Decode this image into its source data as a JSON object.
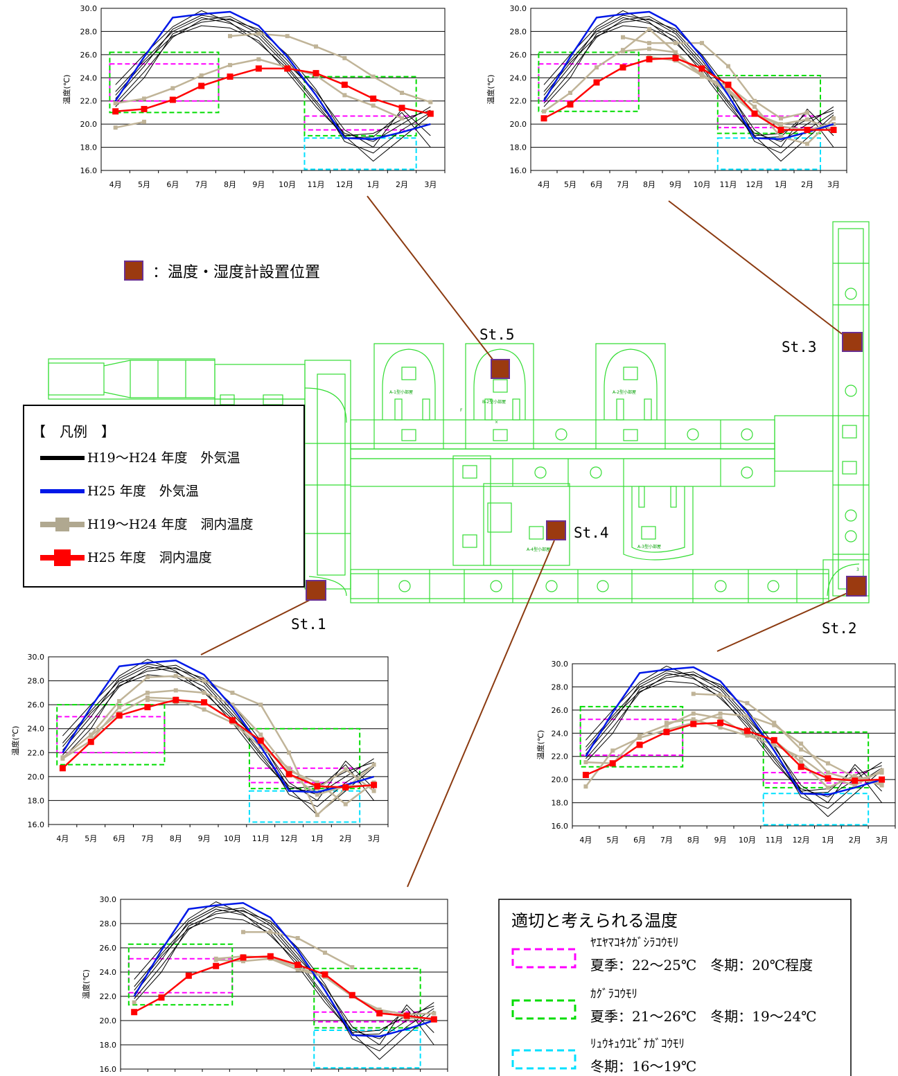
{
  "months": [
    "4月",
    "5月",
    "6月",
    "7月",
    "8月",
    "9月",
    "10月",
    "11月",
    "12月",
    "1月",
    "2月",
    "3月"
  ],
  "ylabel": "温度(℃)",
  "yticks": [
    "16.0",
    "18.0",
    "20.0",
    "22.0",
    "24.0",
    "26.0",
    "28.0",
    "30.0"
  ],
  "marker_note": "：温度・湿度計設置位置",
  "stations": {
    "st1": "St.1",
    "st2": "St.2",
    "st3": "St.3",
    "st4": "St.4",
    "st5": "St.5"
  },
  "plan_labels": {
    "a1": "A-1型小部屋",
    "b2": "B-2型小部屋",
    "a2": "A-2型小部屋",
    "a4": "A-4型小部屋",
    "a3": "A-3型小部屋",
    "f": "F",
    "x": "×",
    "three": "3"
  },
  "legend": {
    "title": "【　凡例　】",
    "items": [
      {
        "label": "H19～H24 年度　外気温",
        "color": "#000000"
      },
      {
        "label": "H25 年度　外気温",
        "color": "#0018e8"
      },
      {
        "label": "H19～H24 年度　洞内温度",
        "color": "#b0a890"
      },
      {
        "label": "H25 年度　洞内温度",
        "color": "#ff0000"
      }
    ]
  },
  "ranges_box": {
    "title": "適切と考えられる温度",
    "items": [
      {
        "name": "ﾔｴﾔﾏｺｷｸｶﾞｼﾗｺｳﾓﾘ",
        "detail": "夏季：22～25℃　冬期：20℃程度",
        "color": "#ff00ff"
      },
      {
        "name": "ｶｸﾞﾗｺｳﾓﾘ",
        "detail": "夏季：21～26℃　冬期：19～24℃",
        "color": "#00dd00"
      },
      {
        "name": "ﾘｭｳｷｭｳﾕﾋﾞﾅｶﾞｺｳﾓﾘ",
        "detail": "冬期：16～19℃",
        "color": "#00e0ff"
      }
    ]
  },
  "colors": {
    "plan": "#33dd33",
    "marker": "#9b3a10",
    "marker_border": "#6a3090",
    "leader": "#8b3a10",
    "grid": "#000000",
    "outside_past": "#000000",
    "outside_h25": "#0018e8",
    "inside_past": "#c0b498",
    "inside_h25": "#ff0000"
  },
  "chart_data": {
    "type": "line",
    "ylim": [
      16,
      30
    ],
    "categories": [
      "4月",
      "5月",
      "6月",
      "7月",
      "8月",
      "9月",
      "10月",
      "11月",
      "12月",
      "1月",
      "2月",
      "3月"
    ],
    "outside_past": [
      [
        21.8,
        24.5,
        27.5,
        29.0,
        29.3,
        28.0,
        25.5,
        22.5,
        18.5,
        17.5,
        19.5,
        21.0
      ],
      [
        22.8,
        25.5,
        28.0,
        29.2,
        28.7,
        27.5,
        25.0,
        22.0,
        19.2,
        18.5,
        20.0,
        21.5
      ],
      [
        22.2,
        25.0,
        28.2,
        29.4,
        29.0,
        28.2,
        26.0,
        23.0,
        19.0,
        16.8,
        18.8,
        20.8
      ],
      [
        23.4,
        26.0,
        28.4,
        29.8,
        28.8,
        27.0,
        24.8,
        21.8,
        18.8,
        18.9,
        21.0,
        18.0
      ],
      [
        21.5,
        24.0,
        27.8,
        28.8,
        29.1,
        27.8,
        25.2,
        22.8,
        19.5,
        18.0,
        21.3,
        19.0
      ],
      [
        22.5,
        25.3,
        27.6,
        28.5,
        28.3,
        27.2,
        24.5,
        21.5,
        19.0,
        19.2,
        20.4,
        21.2
      ]
    ],
    "outside_h25": [
      22.0,
      25.8,
      29.2,
      29.5,
      29.7,
      28.5,
      25.8,
      22.5,
      18.8,
      18.7,
      19.3,
      20.0
    ],
    "stations": [
      {
        "name": "St.5",
        "inside_past": [
          [
            null,
            null,
            null,
            null,
            27.6,
            27.8,
            27.6,
            26.7,
            25.7,
            24.1,
            22.7,
            21.9
          ],
          [
            19.7,
            20.2,
            null,
            null,
            null,
            null,
            null,
            null,
            null,
            null,
            null,
            null
          ],
          [
            21.8,
            22.2,
            23.1,
            24.2,
            25.1,
            25.6,
            24.9,
            24.2,
            22.5,
            21.6,
            20.5,
            null
          ]
        ],
        "inside_h25": [
          21.1,
          21.3,
          22.1,
          23.3,
          24.1,
          24.8,
          24.8,
          24.4,
          23.4,
          22.2,
          21.4,
          20.9
        ],
        "ranges": [
          {
            "kind": "magenta",
            "x0": 0.8,
            "x1": 4.6,
            "y0": 22.0,
            "y1": 25.2
          },
          {
            "kind": "green",
            "x0": 0.8,
            "x1": 4.6,
            "y0": 21.0,
            "y1": 26.2
          },
          {
            "kind": "magenta",
            "x0": 7.6,
            "x1": 11.5,
            "y0": 19.5,
            "y1": 20.7
          },
          {
            "kind": "green",
            "x0": 7.6,
            "x1": 11.5,
            "y0": 19.0,
            "y1": 24.1
          },
          {
            "kind": "cyan",
            "x0": 7.6,
            "x1": 11.5,
            "y0": 16.1,
            "y1": 18.8
          }
        ]
      },
      {
        "name": "St.3",
        "inside_past": [
          [
            null,
            null,
            null,
            27.5,
            27.0,
            27.0,
            27.0,
            25.0,
            22.0,
            20.5,
            21.0,
            null
          ],
          [
            null,
            null,
            null,
            26.3,
            26.5,
            26.2,
            24.3,
            23.0,
            21.0,
            19.8,
            19.5,
            20.0
          ],
          [
            21.1,
            22.7,
            24.9,
            26.4,
            28.2,
            26.2,
            24.1,
            23.3,
            21.5,
            18.9,
            18.3,
            20.5
          ],
          [
            null,
            null,
            null,
            null,
            25.8,
            25.5,
            24.2,
            22.8,
            20.9,
            20.0,
            20.4,
            19.5
          ]
        ],
        "inside_h25": [
          20.5,
          21.7,
          23.6,
          24.9,
          25.6,
          25.7,
          24.8,
          23.4,
          20.9,
          19.5,
          19.5,
          19.5
        ],
        "ranges": [
          {
            "kind": "magenta",
            "x0": 0.8,
            "x1": 4.6,
            "y0": 22.0,
            "y1": 25.2
          },
          {
            "kind": "green",
            "x0": 0.8,
            "x1": 4.6,
            "y0": 21.1,
            "y1": 26.2
          },
          {
            "kind": "magenta",
            "x0": 7.6,
            "x1": 11.5,
            "y0": 19.7,
            "y1": 20.7
          },
          {
            "kind": "green",
            "x0": 7.6,
            "x1": 11.5,
            "y0": 19.2,
            "y1": 24.2
          },
          {
            "kind": "cyan",
            "x0": 7.6,
            "x1": 11.5,
            "y0": 16.1,
            "y1": 18.8
          }
        ]
      },
      {
        "name": "St.1",
        "inside_past": [
          [
            21.6,
            23.5,
            26.3,
            28.3,
            28.4,
            28.0,
            27.0,
            26.0,
            22.0,
            16.8,
            19.0,
            21.0
          ],
          [
            21.5,
            23.0,
            25.8,
            27.0,
            27.2,
            27.0,
            26.0,
            23.5,
            20.5,
            19.5,
            17.7,
            19.5
          ],
          [
            null,
            23.4,
            25.3,
            26.6,
            26.5,
            25.6,
            24.5,
            22.5,
            20.7,
            19.0,
            20.6,
            18.8
          ],
          [
            null,
            null,
            null,
            26.4,
            26.2,
            26.2,
            24.7,
            22.8,
            20.3,
            18.5,
            19.2,
            19.3
          ]
        ],
        "inside_h25": [
          20.7,
          22.9,
          25.1,
          25.8,
          26.4,
          26.2,
          24.7,
          23.0,
          20.2,
          19.2,
          19.1,
          19.3
        ],
        "ranges": [
          {
            "kind": "magenta",
            "x0": 0.8,
            "x1": 4.6,
            "y0": 22.0,
            "y1": 25.0
          },
          {
            "kind": "green",
            "x0": 0.8,
            "x1": 4.6,
            "y0": 21.0,
            "y1": 26.0
          },
          {
            "kind": "magenta",
            "x0": 7.6,
            "x1": 11.5,
            "y0": 19.5,
            "y1": 20.7
          },
          {
            "kind": "green",
            "x0": 7.6,
            "x1": 11.5,
            "y0": 19.0,
            "y1": 24.0
          },
          {
            "kind": "cyan",
            "x0": 7.6,
            "x1": 11.5,
            "y0": 16.2,
            "y1": 18.8
          }
        ]
      },
      {
        "name": "St.2",
        "inside_past": [
          [
            null,
            null,
            null,
            null,
            27.4,
            27.3,
            26.6,
            24.9,
            22.6,
            21.4,
            20.2,
            19.5
          ],
          [
            19.4,
            22.5,
            23.6,
            24.3,
            24.9,
            25.7,
            25.5,
            24.7,
            23.1,
            20.6,
            19.9,
            20.6
          ],
          [
            21.5,
            21.4,
            23.8,
            24.7,
            25.7,
            25.3,
            23.9,
            23.4,
            21.5,
            19.3,
            20.3,
            19.6
          ],
          [
            null,
            null,
            null,
            24.9,
            25.2,
            24.5,
            23.8,
            23.0,
            21.9,
            20.2,
            19.5,
            20.8
          ]
        ],
        "inside_h25": [
          20.4,
          21.4,
          23.0,
          24.1,
          24.8,
          24.9,
          24.2,
          23.4,
          21.1,
          20.1,
          19.9,
          20.0
        ],
        "ranges": [
          {
            "kind": "magenta",
            "x0": 0.8,
            "x1": 4.6,
            "y0": 22.1,
            "y1": 25.2
          },
          {
            "kind": "green",
            "x0": 0.8,
            "x1": 4.6,
            "y0": 21.1,
            "y1": 26.3
          },
          {
            "kind": "magenta",
            "x0": 7.6,
            "x1": 11.5,
            "y0": 19.7,
            "y1": 20.6
          },
          {
            "kind": "green",
            "x0": 7.6,
            "x1": 11.5,
            "y0": 19.3,
            "y1": 24.1
          },
          {
            "kind": "cyan",
            "x0": 7.6,
            "x1": 11.5,
            "y0": 16.1,
            "y1": 18.8
          }
        ]
      },
      {
        "name": "St.4",
        "inside_past": [
          [
            21.5,
            null,
            null,
            null,
            27.3,
            27.3,
            26.8,
            25.6,
            24.4,
            null,
            null,
            null
          ],
          [
            null,
            null,
            null,
            25.1,
            25.3,
            25.2,
            24.4,
            23.6,
            22.0,
            20.9,
            20.5,
            20.6
          ],
          [
            null,
            null,
            null,
            25.0,
            24.9,
            25.1,
            24.2,
            23.6,
            22.0,
            20.8,
            20.2,
            20.2
          ]
        ],
        "inside_h25": [
          20.7,
          21.9,
          23.7,
          24.5,
          25.2,
          25.3,
          24.6,
          23.8,
          22.1,
          20.6,
          20.4,
          20.1
        ],
        "ranges": [
          {
            "kind": "magenta",
            "x0": 0.8,
            "x1": 4.6,
            "y0": 22.3,
            "y1": 25.1
          },
          {
            "kind": "green",
            "x0": 0.8,
            "x1": 4.6,
            "y0": 21.3,
            "y1": 26.3
          },
          {
            "kind": "magenta",
            "x0": 7.6,
            "x1": 11.5,
            "y0": 19.9,
            "y1": 20.7
          },
          {
            "kind": "green",
            "x0": 7.6,
            "x1": 11.5,
            "y0": 19.4,
            "y1": 24.3
          },
          {
            "kind": "cyan",
            "x0": 7.6,
            "x1": 11.5,
            "y0": 16.1,
            "y1": 19.2
          }
        ]
      }
    ]
  }
}
